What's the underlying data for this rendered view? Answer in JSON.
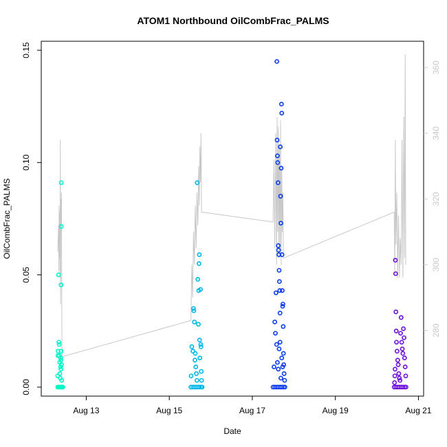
{
  "chart_data": {
    "type": "scatter",
    "title": "ATOM1 Northbound OilCombFrac_PALMS",
    "xlabel": "Date",
    "ylabel": "OilCombFrac_PALMS",
    "x_range": [
      "2016-08-11T22:00",
      "2016-08-21T03:00"
    ],
    "x_ticks": [
      {
        "date": "2016-08-13",
        "label": "Aug 13"
      },
      {
        "date": "2016-08-15",
        "label": "Aug 15"
      },
      {
        "date": "2016-08-17",
        "label": "Aug 17"
      },
      {
        "date": "2016-08-19",
        "label": "Aug 19"
      },
      {
        "date": "2016-08-21",
        "label": "Aug 21"
      }
    ],
    "ylim": [
      -0.004,
      0.154
    ],
    "y_ticks": [
      "0.00",
      "0.05",
      "0.10",
      "0.15"
    ],
    "y2_range": [
      260,
      368
    ],
    "y2_ticks": [
      "280",
      "300",
      "320",
      "340",
      "360"
    ],
    "grid": false,
    "series": [
      {
        "color": "#00f5c8",
        "points": [
          [
            "2016-08-12T07:30",
            0
          ],
          [
            "2016-08-12T07:50",
            0
          ],
          [
            "2016-08-12T08:10",
            0
          ],
          [
            "2016-08-12T08:30",
            0
          ],
          [
            "2016-08-12T08:50",
            0
          ],
          [
            "2016-08-12T09:10",
            0
          ],
          [
            "2016-08-12T09:30",
            0
          ],
          [
            "2016-08-12T09:50",
            0
          ],
          [
            "2016-08-12T10:10",
            0
          ],
          [
            "2016-08-12T10:30",
            0
          ],
          [
            "2016-08-12T07:30",
            0.005
          ],
          [
            "2016-08-12T07:40",
            0.014
          ],
          [
            "2016-08-12T07:45",
            0.016
          ],
          [
            "2016-08-12T08:00",
            0.05
          ],
          [
            "2016-08-12T08:10",
            0.02
          ],
          [
            "2016-08-12T08:20",
            0.019
          ],
          [
            "2016-08-12T08:30",
            0.014
          ],
          [
            "2016-08-12T08:40",
            0.011
          ],
          [
            "2016-08-12T08:45",
            0.006
          ],
          [
            "2016-08-12T09:00",
            0.004
          ],
          [
            "2016-08-12T09:10",
            0.009
          ],
          [
            "2016-08-12T09:15",
            0.013
          ],
          [
            "2016-08-12T09:20",
            0.012
          ],
          [
            "2016-08-12T09:25",
            0.008
          ],
          [
            "2016-08-12T09:30",
            0.016
          ],
          [
            "2016-08-12T09:35",
            0.091
          ],
          [
            "2016-08-12T09:35",
            0.0715
          ],
          [
            "2016-08-12T09:25",
            0.0455
          ],
          [
            "2016-08-12T09:40",
            0.01
          ],
          [
            "2016-08-12T09:50",
            0.003
          ]
        ]
      },
      {
        "color": "#00b8e6",
        "points": [
          [
            "2016-08-15T12:30",
            0
          ],
          [
            "2016-08-15T13:30",
            0
          ],
          [
            "2016-08-15T14:30",
            0
          ],
          [
            "2016-08-15T15:30",
            0
          ],
          [
            "2016-08-15T16:30",
            0
          ],
          [
            "2016-08-15T17:30",
            0
          ],
          [
            "2016-08-15T18:30",
            0
          ],
          [
            "2016-08-15T19:00",
            0
          ],
          [
            "2016-08-15T12:40",
            0.005
          ],
          [
            "2016-08-15T13:00",
            0.018
          ],
          [
            "2016-08-15T13:40",
            0.016
          ],
          [
            "2016-08-15T14:00",
            0.035
          ],
          [
            "2016-08-15T14:10",
            0.034
          ],
          [
            "2016-08-15T14:30",
            0.029
          ],
          [
            "2016-08-15T14:50",
            0.012
          ],
          [
            "2016-08-15T15:00",
            0.015
          ],
          [
            "2016-08-15T15:20",
            0.009
          ],
          [
            "2016-08-15T15:40",
            0.006
          ],
          [
            "2016-08-15T16:00",
            0.003
          ],
          [
            "2016-08-15T16:10",
            0.091
          ],
          [
            "2016-08-15T16:30",
            0.048
          ],
          [
            "2016-08-15T16:50",
            0.028
          ],
          [
            "2016-08-15T17:00",
            0.043
          ],
          [
            "2016-08-15T17:10",
            0.055
          ],
          [
            "2016-08-15T17:20",
            0.059
          ],
          [
            "2016-08-15T17:30",
            0.021
          ],
          [
            "2016-08-15T17:40",
            0.013
          ],
          [
            "2016-08-15T18:00",
            0.0435
          ],
          [
            "2016-08-15T18:10",
            0.019
          ],
          [
            "2016-08-15T18:20",
            0.018
          ],
          [
            "2016-08-15T18:30",
            0.007
          ],
          [
            "2016-08-15T18:40",
            0.003
          ]
        ]
      },
      {
        "color": "#0a3cf0",
        "points": [
          [
            "2016-08-17T12:00",
            0
          ],
          [
            "2016-08-17T13:00",
            0
          ],
          [
            "2016-08-17T14:00",
            0
          ],
          [
            "2016-08-17T15:00",
            0
          ],
          [
            "2016-08-17T16:00",
            0
          ],
          [
            "2016-08-17T17:00",
            0
          ],
          [
            "2016-08-17T18:00",
            0
          ],
          [
            "2016-08-17T18:50",
            0
          ],
          [
            "2016-08-17T12:30",
            0.009
          ],
          [
            "2016-08-17T13:00",
            0.029
          ],
          [
            "2016-08-17T13:20",
            0.024
          ],
          [
            "2016-08-17T13:40",
            0.042
          ],
          [
            "2016-08-17T14:00",
            0.019
          ],
          [
            "2016-08-17T14:10",
            0.145
          ],
          [
            "2016-08-17T14:20",
            0.11
          ],
          [
            "2016-08-17T14:30",
            0.103
          ],
          [
            "2016-08-17T14:40",
            0.1
          ],
          [
            "2016-08-17T14:50",
            0.091
          ],
          [
            "2016-08-17T15:00",
            0.063
          ],
          [
            "2016-08-17T15:10",
            0.061
          ],
          [
            "2016-08-17T15:20",
            0.059
          ],
          [
            "2016-08-17T15:30",
            0.052
          ],
          [
            "2016-08-17T15:40",
            0.047
          ],
          [
            "2016-08-17T15:50",
            0.043
          ],
          [
            "2016-08-17T16:00",
            0.033
          ],
          [
            "2016-08-17T16:10",
            0.107
          ],
          [
            "2016-08-17T16:20",
            0.085
          ],
          [
            "2016-08-17T16:30",
            0.073
          ],
          [
            "2016-08-17T16:40",
            0.0975
          ],
          [
            "2016-08-17T16:50",
            0.126
          ],
          [
            "2016-08-17T17:00",
            0.122
          ],
          [
            "2016-08-17T17:10",
            0.059
          ],
          [
            "2016-08-17T17:20",
            0.043
          ],
          [
            "2016-08-17T17:30",
            0.036
          ],
          [
            "2016-08-17T17:40",
            0.037
          ],
          [
            "2016-08-17T17:50",
            0.027
          ],
          [
            "2016-08-17T18:00",
            0.015
          ],
          [
            "2016-08-17T18:10",
            0.01
          ],
          [
            "2016-08-17T18:20",
            0.006
          ],
          [
            "2016-08-17T18:40",
            0.003
          ],
          [
            "2016-08-17T14:30",
            0.011
          ],
          [
            "2016-08-17T15:00",
            0.008
          ],
          [
            "2016-08-17T15:30",
            0.017
          ],
          [
            "2016-08-17T16:00",
            0.02
          ],
          [
            "2016-08-17T16:30",
            0.004
          ],
          [
            "2016-08-17T17:00",
            0.013
          ],
          [
            "2016-08-17T17:30",
            0.009
          ]
        ]
      },
      {
        "color": "#6b0fd9",
        "points": [
          [
            "2016-08-20T10:00",
            0
          ],
          [
            "2016-08-20T11:00",
            0
          ],
          [
            "2016-08-20T12:00",
            0
          ],
          [
            "2016-08-20T13:00",
            0
          ],
          [
            "2016-08-20T14:00",
            0
          ],
          [
            "2016-08-20T15:00",
            0
          ],
          [
            "2016-08-20T16:00",
            0
          ],
          [
            "2016-08-20T16:50",
            0
          ],
          [
            "2016-08-20T10:10",
            0.002
          ],
          [
            "2016-08-20T10:20",
            0.005
          ],
          [
            "2016-08-20T10:30",
            0.008
          ],
          [
            "2016-08-20T10:40",
            0.0565
          ],
          [
            "2016-08-20T10:50",
            0.0505
          ],
          [
            "2016-08-20T11:00",
            0.0335
          ],
          [
            "2016-08-20T11:10",
            0.025
          ],
          [
            "2016-08-20T11:20",
            0.02
          ],
          [
            "2016-08-20T11:40",
            0.016
          ],
          [
            "2016-08-20T12:00",
            0.012
          ],
          [
            "2016-08-20T12:20",
            0.01
          ],
          [
            "2016-08-20T12:40",
            0.006
          ],
          [
            "2016-08-20T13:00",
            0.004
          ],
          [
            "2016-08-20T13:20",
            0.003
          ],
          [
            "2016-08-20T13:40",
            0.024
          ],
          [
            "2016-08-20T14:00",
            0.031
          ],
          [
            "2016-08-20T14:20",
            0.02
          ],
          [
            "2016-08-20T14:40",
            0.017
          ],
          [
            "2016-08-20T15:00",
            0.015
          ],
          [
            "2016-08-20T15:20",
            0.026
          ],
          [
            "2016-08-20T15:40",
            0.022
          ],
          [
            "2016-08-20T16:00",
            0.013
          ],
          [
            "2016-08-20T16:20",
            0.009
          ],
          [
            "2016-08-20T16:40",
            0.005
          ]
        ]
      }
    ],
    "y2_line": {
      "color": "#c8c8c8",
      "points": [
        [
          "2016-08-12T07:30",
          304
        ],
        [
          "2016-08-12T08:00",
          312
        ],
        [
          "2016-08-12T08:10",
          298
        ],
        [
          "2016-08-12T08:20",
          318
        ],
        [
          "2016-08-12T08:30",
          302
        ],
        [
          "2016-08-12T08:40",
          316
        ],
        [
          "2016-08-12T08:50",
          296
        ],
        [
          "2016-08-12T09:00",
          338
        ],
        [
          "2016-08-12T09:10",
          288
        ],
        [
          "2016-08-12T09:20",
          320
        ],
        [
          "2016-08-12T09:30",
          312
        ],
        [
          "2016-08-12T09:40",
          322
        ],
        [
          "2016-08-12T09:50",
          290
        ],
        [
          "2016-08-12T10:00",
          272
        ],
        [
          "2016-08-15T12:30",
          283
        ],
        [
          "2016-08-15T13:00",
          300
        ],
        [
          "2016-08-15T13:30",
          290
        ],
        [
          "2016-08-15T14:00",
          310
        ],
        [
          "2016-08-15T14:30",
          300
        ],
        [
          "2016-08-15T15:00",
          318
        ],
        [
          "2016-08-15T15:30",
          305
        ],
        [
          "2016-08-15T16:00",
          322
        ],
        [
          "2016-08-15T16:30",
          312
        ],
        [
          "2016-08-15T17:00",
          330
        ],
        [
          "2016-08-15T17:20",
          318
        ],
        [
          "2016-08-15T17:40",
          336
        ],
        [
          "2016-08-15T18:00",
          325
        ],
        [
          "2016-08-15T18:20",
          340
        ],
        [
          "2016-08-15T18:40",
          316
        ],
        [
          "2016-08-17T12:00",
          313
        ],
        [
          "2016-08-17T12:30",
          332
        ],
        [
          "2016-08-17T13:00",
          305
        ],
        [
          "2016-08-17T13:30",
          340
        ],
        [
          "2016-08-17T14:00",
          300
        ],
        [
          "2016-08-17T14:20",
          345
        ],
        [
          "2016-08-17T14:40",
          310
        ],
        [
          "2016-08-17T15:00",
          342
        ],
        [
          "2016-08-17T15:20",
          302
        ],
        [
          "2016-08-17T15:40",
          336
        ],
        [
          "2016-08-17T16:00",
          305
        ],
        [
          "2016-08-17T16:20",
          344
        ],
        [
          "2016-08-17T16:40",
          300
        ],
        [
          "2016-08-17T17:00",
          330
        ],
        [
          "2016-08-17T17:20",
          310
        ],
        [
          "2016-08-17T17:40",
          322
        ],
        [
          "2016-08-17T18:00",
          302
        ],
        [
          "2016-08-20T10:00",
          316
        ],
        [
          "2016-08-20T10:20",
          298
        ],
        [
          "2016-08-20T10:40",
          338
        ],
        [
          "2016-08-20T11:00",
          306
        ],
        [
          "2016-08-20T11:30",
          322
        ],
        [
          "2016-08-20T12:00",
          296
        ],
        [
          "2016-08-20T12:30",
          315
        ],
        [
          "2016-08-20T13:00",
          296
        ],
        [
          "2016-08-20T13:30",
          308
        ],
        [
          "2016-08-20T14:00",
          300
        ],
        [
          "2016-08-20T14:30",
          338
        ],
        [
          "2016-08-20T15:00",
          296
        ],
        [
          "2016-08-20T15:30",
          345
        ],
        [
          "2016-08-20T16:00",
          302
        ],
        [
          "2016-08-20T16:20",
          364
        ],
        [
          "2016-08-20T16:40",
          300
        ]
      ]
    }
  }
}
